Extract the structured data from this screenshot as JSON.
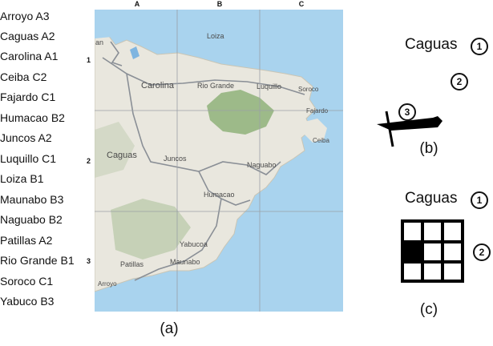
{
  "index": [
    {
      "name": "Arroyo",
      "cell": "A3"
    },
    {
      "name": "Caguas",
      "cell": "A2"
    },
    {
      "name": "Carolina",
      "cell": "A1"
    },
    {
      "name": "Ceiba",
      "cell": "C2"
    },
    {
      "name": "Fajardo",
      "cell": "C1"
    },
    {
      "name": "Humacao",
      "cell": "B2"
    },
    {
      "name": "Juncos",
      "cell": "A2"
    },
    {
      "name": "Luquillo",
      "cell": "C1"
    },
    {
      "name": "Loiza",
      "cell": "B1"
    },
    {
      "name": "Maunabo",
      "cell": "B3"
    },
    {
      "name": "Naguabo",
      "cell": "B2"
    },
    {
      "name": "Patillas",
      "cell": "A2"
    },
    {
      "name": "Rio Grande",
      "cell": "B1"
    },
    {
      "name": "Soroco",
      "cell": "C1"
    },
    {
      "name": "Yabuco",
      "cell": "B3"
    }
  ],
  "map": {
    "columns": [
      "A",
      "B",
      "C"
    ],
    "rows": [
      "1",
      "2",
      "3"
    ],
    "places": {
      "san": "an",
      "loiza": "Loiza",
      "carolina": "Carolina",
      "rio_grande": "Rio Grande",
      "luquillo": "Luquillo",
      "soroco": "Soroco",
      "fajardo": "Fajardo",
      "ceiba": "Ceiba",
      "caguas": "Caguas",
      "juncos": "Juncos",
      "naguabo": "Naguabo",
      "humacao": "Humacao",
      "yabucoa": "Yabucoa",
      "patillas": "Patillas",
      "maunabo": "Maunabo",
      "arroyo": "Arroyo"
    },
    "colors": {
      "sea": "#a9d3ee",
      "land": "#e9e7de",
      "forest": "#8fb27a",
      "road": "#8a8f96",
      "grid": "#9aa0a6"
    }
  },
  "panel_b": {
    "title": "Caguas",
    "marker_1": "1",
    "marker_2": "2",
    "marker_3": "3",
    "caption": "(b)"
  },
  "panel_c": {
    "title": "Caguas",
    "marker_1": "1",
    "marker_2": "2",
    "caption": "(c)",
    "highlight_cell": "A2"
  },
  "panel_a": {
    "caption": "(a)"
  }
}
